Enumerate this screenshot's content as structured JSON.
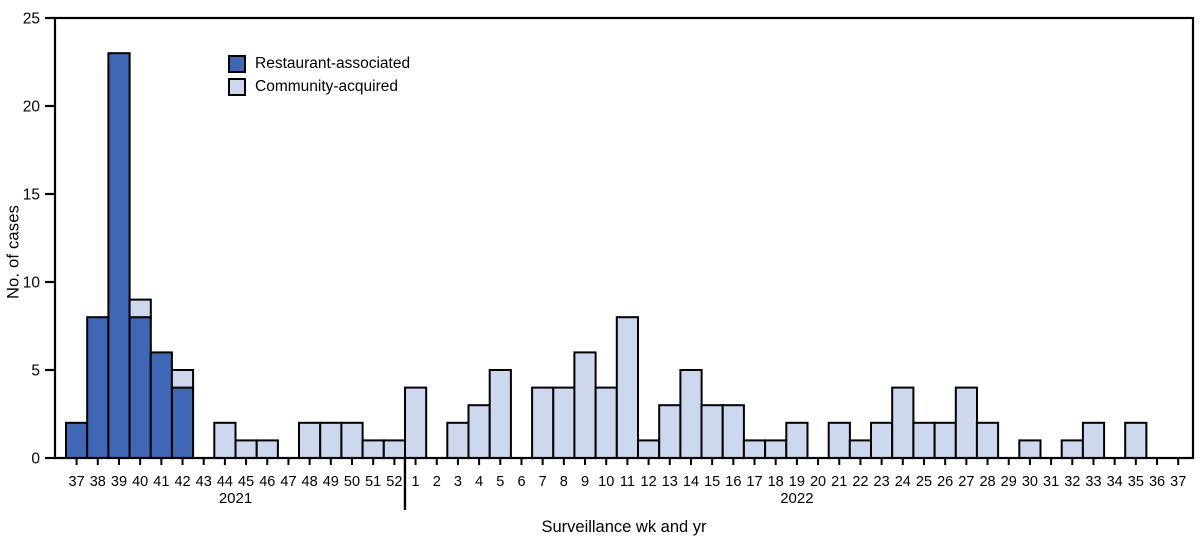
{
  "chart_data": {
    "type": "bar",
    "stacked": true,
    "title": "",
    "xlabel": "Surveillance wk and yr",
    "ylabel": "No. of cases",
    "ylim": [
      0,
      25
    ],
    "y_ticks": [
      0,
      5,
      10,
      15,
      20,
      25
    ],
    "x_labels": [
      "37",
      "38",
      "39",
      "40",
      "41",
      "42",
      "43",
      "44",
      "45",
      "46",
      "47",
      "48",
      "49",
      "50",
      "51",
      "52",
      "1",
      "2",
      "3",
      "4",
      "5",
      "6",
      "7",
      "8",
      "9",
      "10",
      "11",
      "12",
      "13",
      "14",
      "15",
      "16",
      "17",
      "18",
      "19",
      "20",
      "21",
      "22",
      "23",
      "24",
      "25",
      "26",
      "27",
      "28",
      "29",
      "30",
      "31",
      "32",
      "33",
      "34",
      "35",
      "36",
      "37"
    ],
    "years": [
      {
        "label": "2021",
        "from_index": 0,
        "to_index": 15
      },
      {
        "label": "2022",
        "from_index": 16,
        "to_index": 52
      }
    ],
    "divider_after_index": 15,
    "series": [
      {
        "name": "Restaurant-associated",
        "color": "#4067b6",
        "values": [
          2,
          8,
          23,
          8,
          6,
          4,
          0,
          0,
          0,
          0,
          0,
          0,
          0,
          0,
          0,
          0,
          0,
          0,
          0,
          0,
          0,
          0,
          0,
          0,
          0,
          0,
          0,
          0,
          0,
          0,
          0,
          0,
          0,
          0,
          0,
          0,
          0,
          0,
          0,
          0,
          0,
          0,
          0,
          0,
          0,
          0,
          0,
          0,
          0,
          0,
          0,
          0,
          0
        ]
      },
      {
        "name": "Community-acquired",
        "color": "#cdd8ef",
        "values": [
          0,
          0,
          0,
          1,
          0,
          1,
          0,
          2,
          1,
          1,
          0,
          2,
          2,
          2,
          1,
          1,
          4,
          0,
          2,
          3,
          5,
          0,
          4,
          4,
          6,
          4,
          8,
          1,
          3,
          5,
          3,
          3,
          1,
          1,
          2,
          0,
          2,
          1,
          2,
          4,
          2,
          2,
          4,
          2,
          0,
          1,
          0,
          1,
          2,
          0,
          2,
          0,
          0
        ]
      }
    ],
    "legend_position": "top-left-inside",
    "axis_color": "#000000",
    "grid": false
  }
}
